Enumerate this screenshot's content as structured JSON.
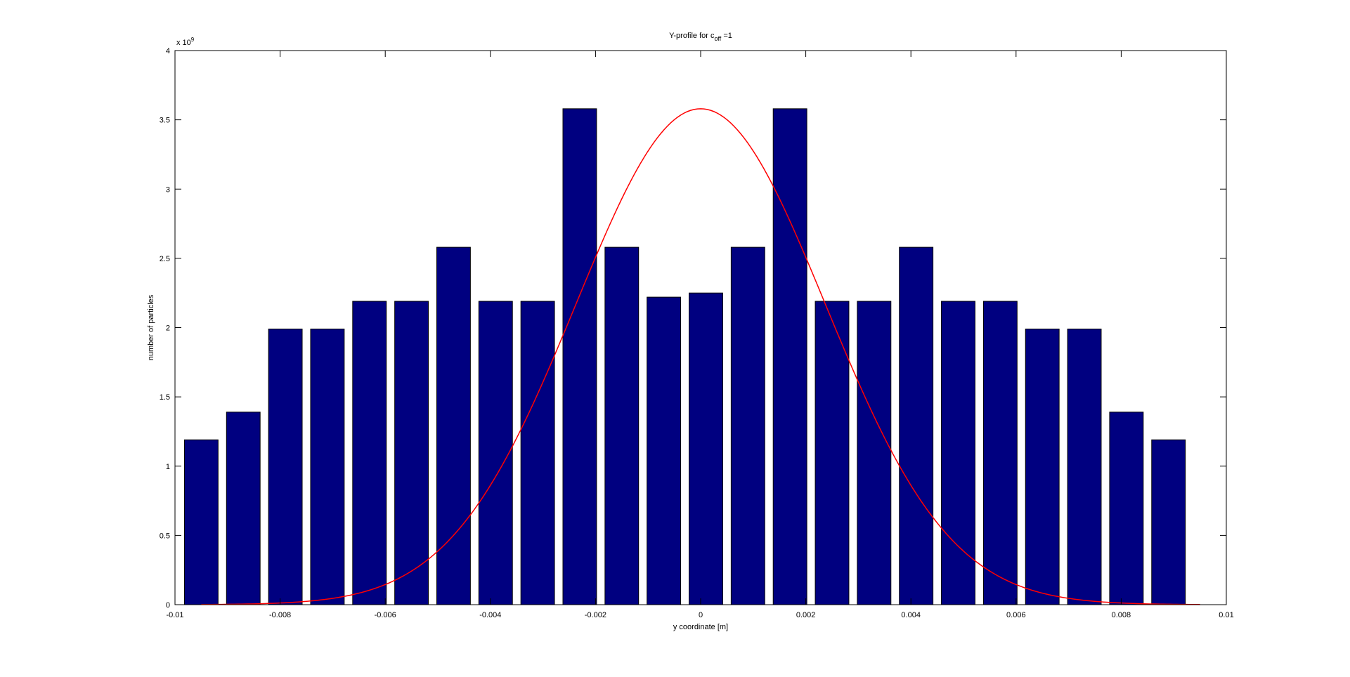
{
  "figure": {
    "background": "#ffffff"
  },
  "chart_data": {
    "type": "bar",
    "title": {
      "text": "Y-profile for c",
      "subscript": "off",
      "suffix": " =1"
    },
    "xlabel": "y coordinate [m]",
    "ylabel": "number of particles",
    "y_exponent_base": "x 10",
    "y_exponent": "9",
    "xlim": [
      -0.01,
      0.01
    ],
    "ylim": [
      0,
      4000000000.0
    ],
    "x_ticks": [
      -0.01,
      -0.008,
      -0.006,
      -0.004,
      -0.002,
      0,
      0.002,
      0.004,
      0.006,
      0.008,
      0.01
    ],
    "x_tick_labels": [
      "-0.01",
      "-0.008",
      "-0.006",
      "-0.004",
      "-0.002",
      "0",
      "0.002",
      "0.004",
      "0.006",
      "0.008",
      "0.01"
    ],
    "y_ticks": [
      0,
      500000000.0,
      1000000000.0,
      1500000000.0,
      2000000000.0,
      2500000000.0,
      3000000000.0,
      3500000000.0,
      4000000000.0
    ],
    "y_tick_labels": [
      "0",
      "0.5",
      "1",
      "1.5",
      "2",
      "2.5",
      "3",
      "3.5",
      "4"
    ],
    "bar_width": 0.00064,
    "bar_color": "#000080",
    "bar_edge_color": "#000000",
    "x": [
      -0.0095,
      -0.0087,
      -0.0079,
      -0.0071,
      -0.0063,
      -0.0055,
      -0.0047,
      -0.0039,
      -0.0031,
      -0.0023,
      -0.0015,
      -0.0007,
      0.0001,
      0.0009,
      0.0017,
      0.0025,
      0.0033,
      0.0041,
      0.0049,
      0.0057,
      0.0065,
      0.0073,
      0.0081,
      0.0089
    ],
    "values": [
      1190000000.0,
      1390000000.0,
      1990000000.0,
      1990000000.0,
      2190000000.0,
      2190000000.0,
      2580000000.0,
      2190000000.0,
      2190000000.0,
      3580000000.0,
      2580000000.0,
      2220000000.0,
      2250000000.0,
      2580000000.0,
      3580000000.0,
      2190000000.0,
      2190000000.0,
      2580000000.0,
      2190000000.0,
      2190000000.0,
      1990000000.0,
      1990000000.0,
      1390000000.0,
      1190000000.0
    ],
    "fit_curve": {
      "type": "gaussian",
      "color": "#ff0000",
      "amplitude": 3580000000.0,
      "mean": 0.0,
      "sigma": 0.00237,
      "x_range": [
        -0.0095,
        0.0095
      ]
    },
    "grid": false,
    "legend": "none"
  }
}
